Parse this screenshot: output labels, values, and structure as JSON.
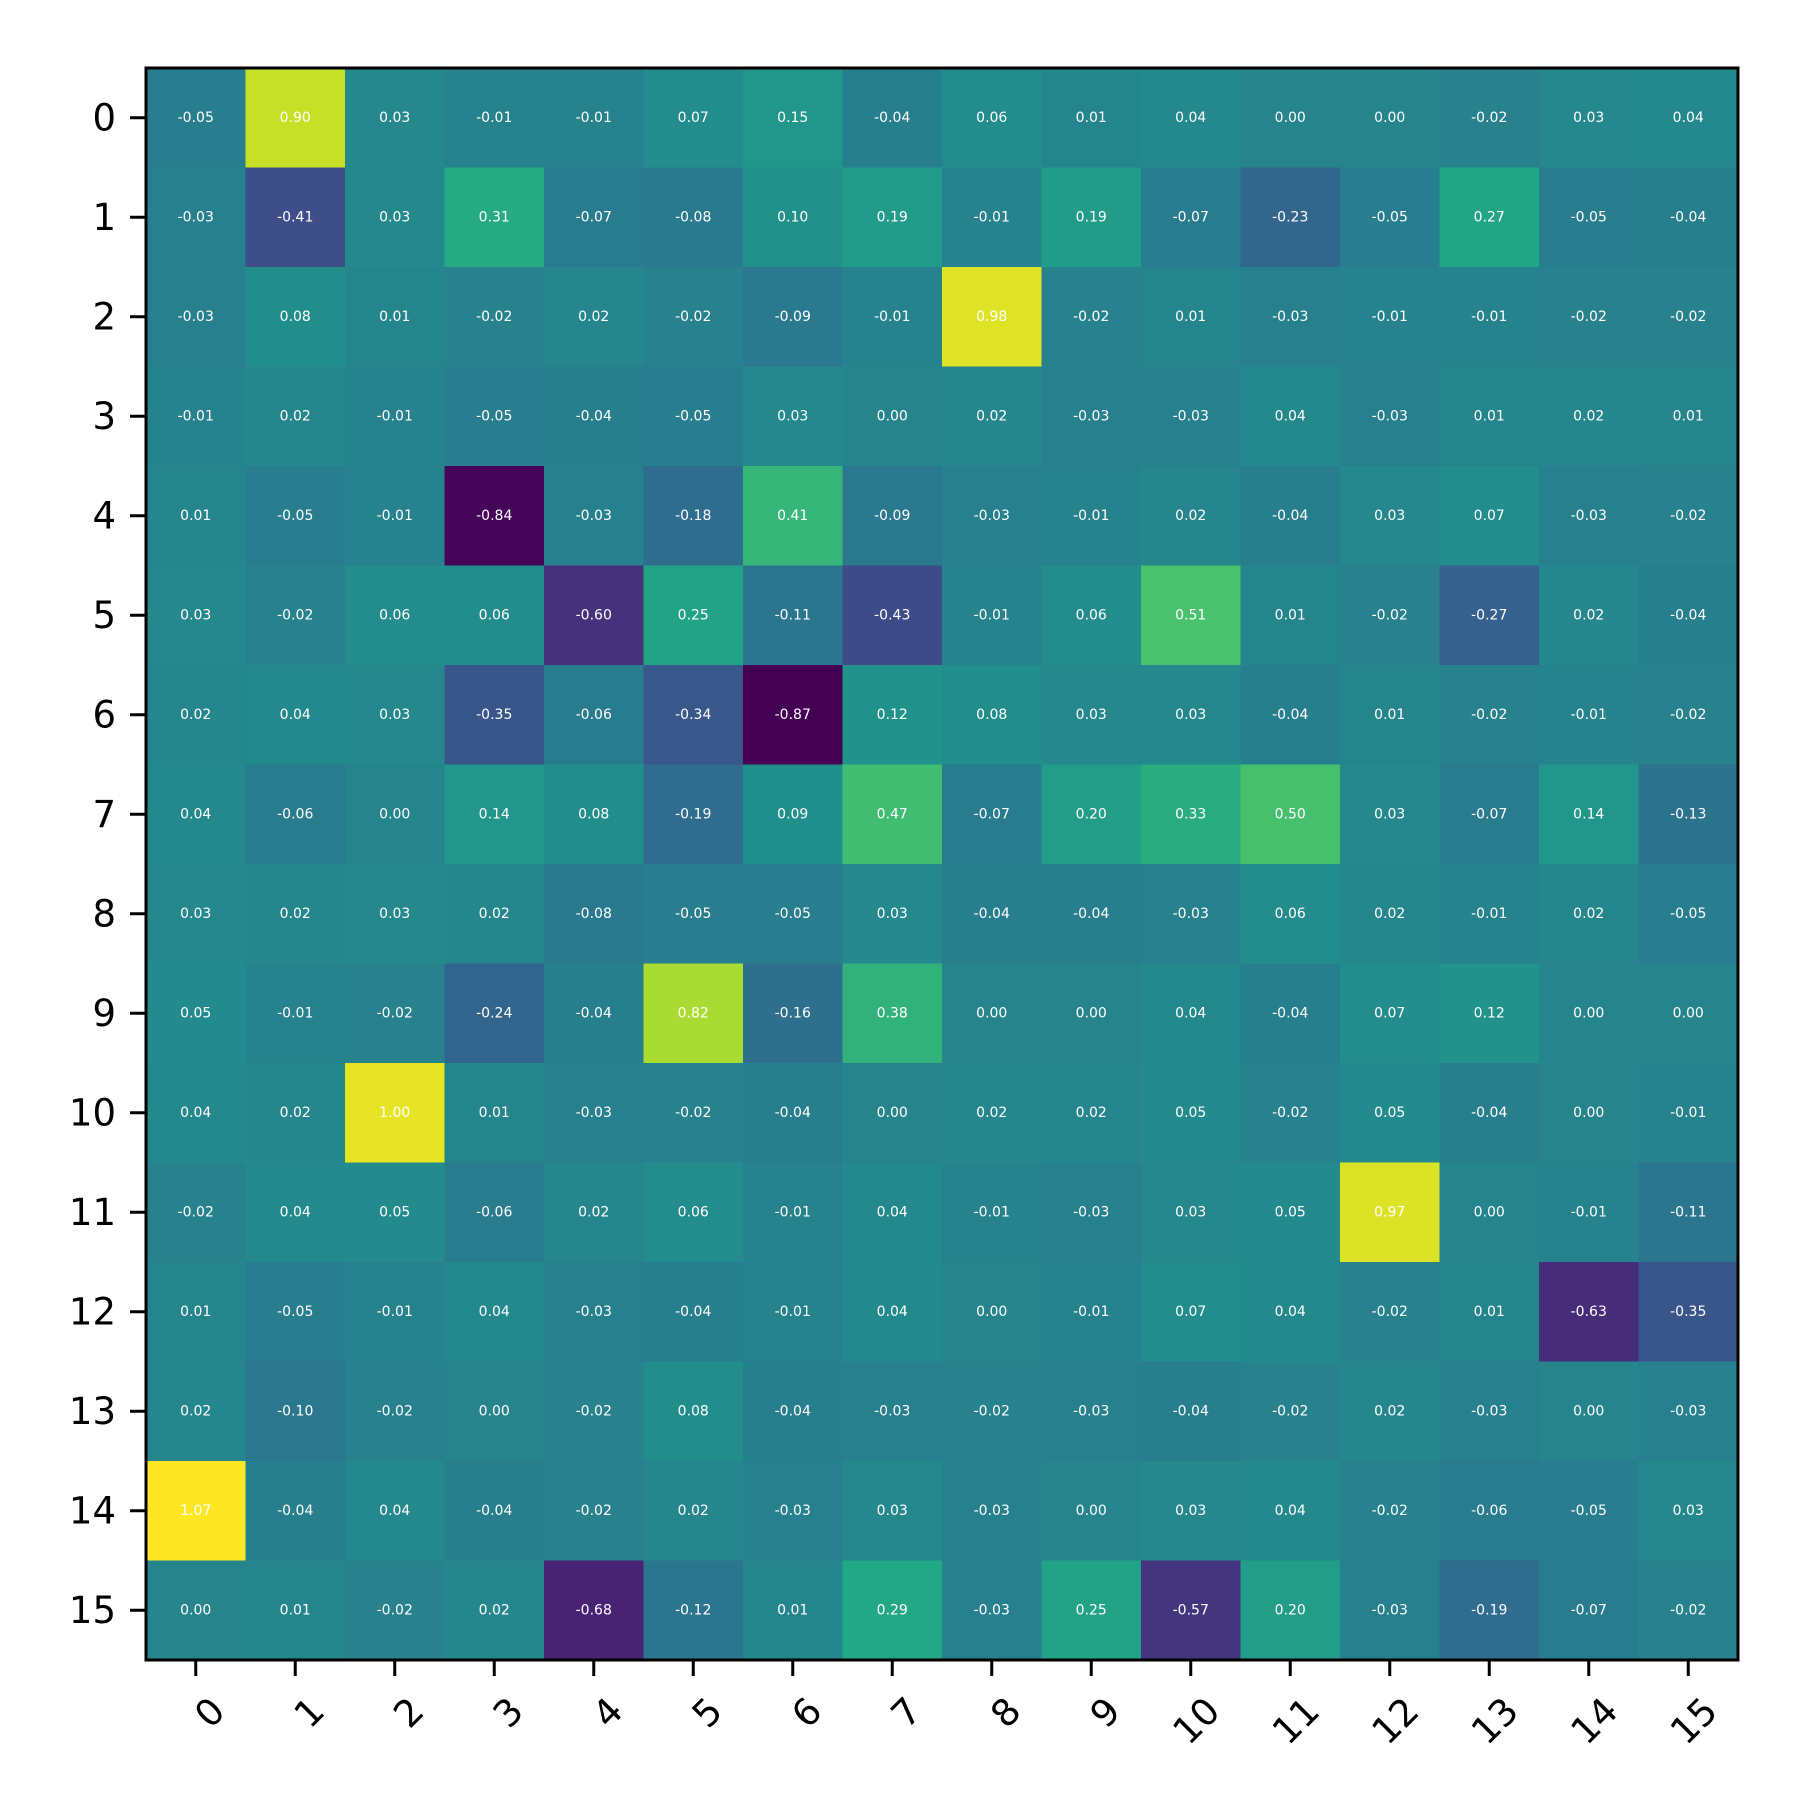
{
  "chart_data": {
    "type": "heatmap",
    "title": "",
    "xlabel": "",
    "ylabel": "",
    "colormap": "viridis",
    "vmin": -0.87,
    "vmax": 1.07,
    "x_tick_labels": [
      "0",
      "1",
      "2",
      "3",
      "4",
      "5",
      "6",
      "7",
      "8",
      "9",
      "10",
      "11",
      "12",
      "13",
      "14",
      "15"
    ],
    "y_tick_labels": [
      "0",
      "1",
      "2",
      "3",
      "4",
      "5",
      "6",
      "7",
      "8",
      "9",
      "10",
      "11",
      "12",
      "13",
      "14",
      "15"
    ],
    "values": [
      [
        -0.05,
        0.9,
        0.03,
        -0.01,
        -0.01,
        0.07,
        0.15,
        -0.04,
        0.06,
        0.01,
        0.04,
        -0.0,
        -0.0,
        -0.02,
        0.03,
        0.04
      ],
      [
        -0.03,
        -0.41,
        0.03,
        0.31,
        -0.07,
        -0.08,
        0.1,
        0.19,
        -0.01,
        0.19,
        -0.07,
        -0.23,
        -0.05,
        0.27,
        -0.05,
        -0.04
      ],
      [
        -0.03,
        0.08,
        0.01,
        -0.02,
        0.02,
        -0.02,
        -0.09,
        -0.01,
        0.98,
        -0.02,
        0.01,
        -0.03,
        -0.01,
        -0.01,
        -0.02,
        -0.02
      ],
      [
        -0.01,
        0.02,
        -0.01,
        -0.05,
        -0.04,
        -0.05,
        0.03,
        -0.0,
        0.02,
        -0.03,
        -0.03,
        0.04,
        -0.03,
        0.01,
        0.02,
        0.01
      ],
      [
        0.01,
        -0.05,
        -0.01,
        -0.84,
        -0.03,
        -0.18,
        0.41,
        -0.09,
        -0.03,
        -0.01,
        0.02,
        -0.04,
        0.03,
        0.07,
        -0.03,
        -0.02
      ],
      [
        0.03,
        -0.02,
        0.06,
        0.06,
        -0.6,
        0.25,
        -0.11,
        -0.43,
        -0.01,
        0.06,
        0.51,
        0.01,
        -0.02,
        -0.27,
        0.02,
        -0.04
      ],
      [
        0.02,
        0.04,
        0.03,
        -0.35,
        -0.06,
        -0.34,
        -0.87,
        0.12,
        0.08,
        0.03,
        0.03,
        -0.04,
        0.01,
        -0.02,
        -0.01,
        -0.02
      ],
      [
        0.04,
        -0.06,
        -0.0,
        0.14,
        0.08,
        -0.19,
        0.09,
        0.47,
        -0.07,
        0.2,
        0.33,
        0.5,
        0.03,
        -0.07,
        0.14,
        -0.13
      ],
      [
        0.03,
        0.02,
        0.03,
        0.02,
        -0.08,
        -0.05,
        -0.05,
        0.03,
        -0.04,
        -0.04,
        -0.03,
        0.06,
        0.02,
        -0.01,
        0.02,
        -0.05
      ],
      [
        0.05,
        -0.01,
        -0.02,
        -0.24,
        -0.04,
        0.82,
        -0.16,
        0.38,
        0.0,
        -0.0,
        0.04,
        -0.04,
        0.07,
        0.12,
        0.0,
        0.0
      ],
      [
        0.04,
        0.02,
        1.0,
        0.01,
        -0.03,
        -0.02,
        -0.04,
        -0.0,
        0.02,
        0.02,
        0.05,
        -0.02,
        0.05,
        -0.04,
        -0.0,
        -0.01
      ],
      [
        -0.02,
        0.04,
        0.05,
        -0.06,
        0.02,
        0.06,
        -0.01,
        0.04,
        -0.01,
        -0.03,
        0.03,
        0.05,
        0.97,
        0.0,
        -0.01,
        -0.11
      ],
      [
        0.01,
        -0.05,
        -0.01,
        0.04,
        -0.03,
        -0.04,
        -0.01,
        0.04,
        0.0,
        -0.01,
        0.07,
        0.04,
        -0.02,
        0.01,
        -0.63,
        -0.35
      ],
      [
        0.02,
        -0.1,
        -0.02,
        0.0,
        -0.02,
        0.08,
        -0.04,
        -0.03,
        -0.02,
        -0.03,
        -0.04,
        -0.02,
        0.02,
        -0.03,
        -0.0,
        -0.03
      ],
      [
        1.07,
        -0.04,
        0.04,
        -0.04,
        -0.02,
        0.02,
        -0.03,
        0.03,
        -0.03,
        0.0,
        0.03,
        0.04,
        -0.02,
        -0.06,
        -0.05,
        0.03
      ],
      [
        0.0,
        0.01,
        -0.02,
        0.02,
        -0.68,
        -0.12,
        0.01,
        0.29,
        -0.03,
        0.25,
        -0.57,
        0.2,
        -0.03,
        -0.19,
        -0.07,
        -0.02
      ]
    ],
    "cell_label_color": "#ffffff",
    "grid": false,
    "legend": "none"
  }
}
